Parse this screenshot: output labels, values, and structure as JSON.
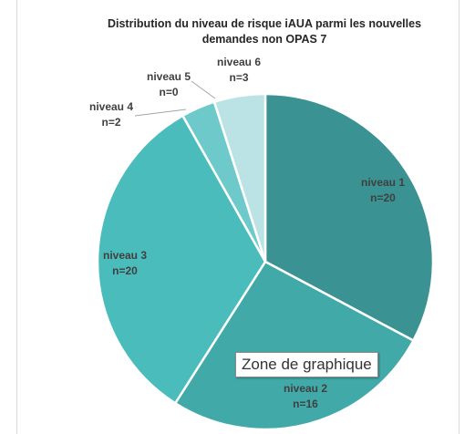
{
  "chart_data": {
    "type": "pie",
    "title": "Distribution du niveau de risque iAUA parmi les nouvelles demandes non OPAS 7",
    "categories": [
      "niveau 1",
      "niveau 2",
      "niveau 3",
      "niveau 4",
      "niveau 5",
      "niveau 6"
    ],
    "values": [
      20,
      16,
      20,
      2,
      0,
      3
    ],
    "value_labels": [
      "n=20",
      "n=16",
      "n=20",
      "n=2",
      "n=0",
      "n=3"
    ],
    "colors": [
      "#3a9292",
      "#42a9a9",
      "#4bbcbc",
      "#6ecaca",
      "#9ad8d8",
      "#bbe3e5"
    ]
  },
  "tooltip": "Zone de graphique"
}
